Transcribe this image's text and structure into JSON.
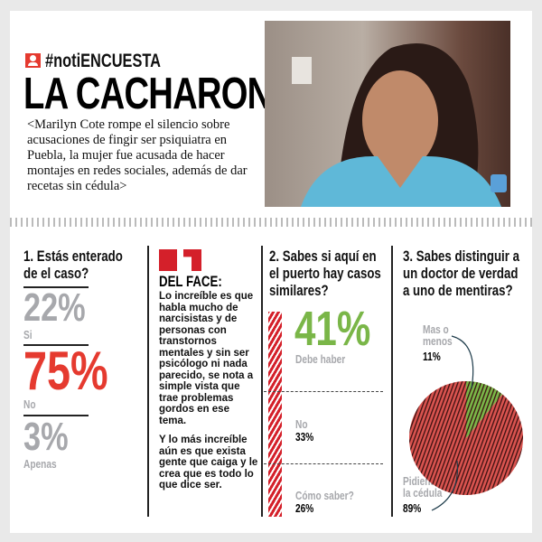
{
  "header": {
    "hashtag": "#notiENCUESTA",
    "headline": "LA CACHARON!",
    "lede": "<Marilyn Cote rompe el silencio sobre acusaciones de fingir ser psiquiatra en Puebla, la mujer fue acusada de hacer montajes en redes sociales, además de dar recetas sin cédula>",
    "tag_icon": "person-icon"
  },
  "colors": {
    "accent_red": "#e53a2f",
    "green": "#7ab648",
    "gray": "#a7a8ac"
  },
  "q1": {
    "question": "1. Estás enterado de el caso?",
    "answers": [
      {
        "value": "22%",
        "label": "Si"
      },
      {
        "value": "75%",
        "label": "No"
      },
      {
        "value": "3%",
        "label": "Apenas"
      }
    ]
  },
  "quote": {
    "title": "DEL FACE:",
    "p1": "Lo increíble es que habla mucho de narcisistas y de personas con transtornos mentales y sin ser psicólogo ni nada parecido, se nota a simple vista que trae problemas gordos en ese tema.",
    "p2": "Y lo más increíble aún es que exista gente que caiga y le crea que es todo lo que dice ser."
  },
  "q2": {
    "question": "2. Sabes si aquí en el puerto hay casos similares?",
    "answers": [
      {
        "value": "41%",
        "label": "Debe haber"
      },
      {
        "value": "33%",
        "label": "No"
      },
      {
        "value": "26%",
        "label": "Cómo saber?"
      }
    ]
  },
  "q3": {
    "question": "3. Sabes distinguir a un doctor de verdad a uno de mentiras?",
    "answers": [
      {
        "value": "11%",
        "label": "Mas o menos"
      },
      {
        "value": "89%",
        "label": "Pidiendole la cédula"
      }
    ]
  },
  "chart_data": {
    "type": "pie",
    "title": "3. Sabes distinguir a un doctor de verdad a uno de mentiras?",
    "slices": [
      {
        "label": "Mas o menos",
        "value": 11,
        "color": "#7ab648"
      },
      {
        "label": "Pidiendole la cédula",
        "value": 89,
        "color": "#d9534f"
      }
    ]
  }
}
